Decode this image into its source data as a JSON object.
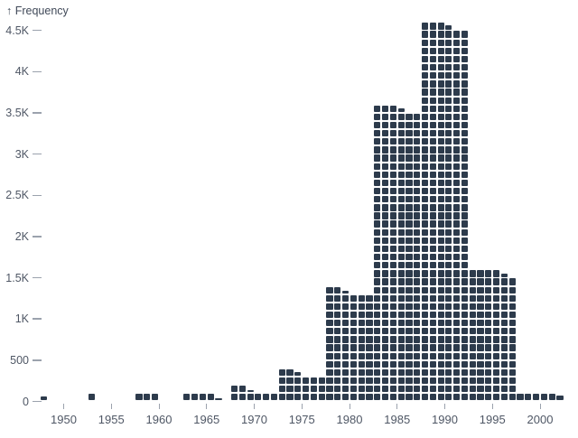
{
  "chart": {
    "y_axis_title": "↑ Frequency"
  },
  "chart_data": {
    "type": "bar",
    "style": "waffle-unit-histogram",
    "title": "",
    "xlabel": "",
    "ylabel": "Frequency",
    "categories": [
      1950,
      1955,
      1960,
      1965,
      1970,
      1975,
      1980,
      1985,
      1990,
      1995,
      2000
    ],
    "values": [
      10,
      18,
      50,
      72,
      138,
      342,
      1340,
      3560,
      4560,
      1575,
      95
    ],
    "x_tick_labels": [
      "1950",
      "1955",
      "1960",
      "1965",
      "1970",
      "1975",
      "1980",
      "1985",
      "1990",
      "1995",
      "2000"
    ],
    "y_ticks": [
      {
        "value": 0,
        "label": "0"
      },
      {
        "value": 500,
        "label": "500"
      },
      {
        "value": 1000,
        "label": "1K"
      },
      {
        "value": 1500,
        "label": "1.5K"
      },
      {
        "value": 2000,
        "label": "2K"
      },
      {
        "value": 2500,
        "label": "2.5K"
      },
      {
        "value": 3000,
        "label": "3K"
      },
      {
        "value": 3500,
        "label": "3.5K"
      },
      {
        "value": 4000,
        "label": "4K"
      },
      {
        "value": 4500,
        "label": "4.5K"
      }
    ],
    "ylim": [
      0,
      4600
    ],
    "xlim": [
      1947.5,
      2002.5
    ],
    "grid": false,
    "legend": false,
    "units_per_cell": 16.667,
    "cells_per_row": 6,
    "colors": {
      "cell": "#2d3b4c",
      "tick_label": "#4f5765",
      "axis_title": "#414a59",
      "tick_mark": "#9ba2ad"
    }
  }
}
